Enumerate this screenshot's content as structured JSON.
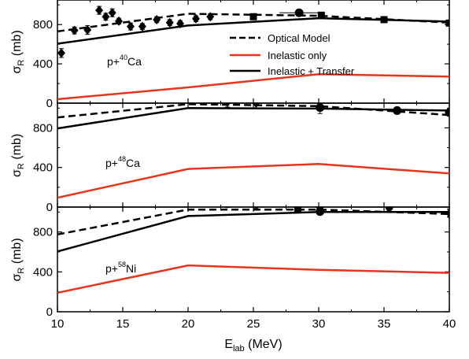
{
  "chart_data": {
    "type": "line",
    "x_axis": {
      "label": "E",
      "label_sub": "lab",
      "label_unit": " (MeV)",
      "ticks": [
        10,
        15,
        20,
        25,
        30,
        35,
        40
      ],
      "xlim": [
        10,
        40
      ]
    },
    "y_axis_label": {
      "main": "σ",
      "sub": "R",
      "unit": " (mb)"
    },
    "legend": {
      "placement": "top-right of top panel",
      "entries": [
        {
          "label": "Optical Model",
          "color": "#000000",
          "dash": "dashed"
        },
        {
          "label": "Inelastic only",
          "color": "#e8341c",
          "dash": "solid"
        },
        {
          "label": "Inelastic + Transfer",
          "color": "#000000",
          "dash": "solid"
        }
      ]
    },
    "panels": [
      {
        "id": "ca40",
        "label": {
          "prefix": "p+",
          "sup": "40",
          "el": "Ca"
        },
        "ylim": [
          0,
          1050
        ],
        "yticks": [
          "0",
          "400",
          "800"
        ],
        "series": [
          {
            "name": "Optical Model",
            "style": "dashed",
            "color": "#000000",
            "x": [
              10,
              20,
              30,
              40
            ],
            "y": [
              730,
              910,
              890,
              820
            ]
          },
          {
            "name": "Inelastic only",
            "style": "solid",
            "color": "#e8341c",
            "x": [
              10,
              20,
              30,
              40
            ],
            "y": [
              40,
              160,
              295,
              270
            ]
          },
          {
            "name": "Inelastic + Transfer",
            "style": "solid",
            "color": "#000000",
            "x": [
              10,
              20,
              30,
              40
            ],
            "y": [
              605,
              790,
              865,
              830
            ]
          }
        ],
        "points": [
          {
            "x": 10.3,
            "y": 510,
            "err": 45,
            "marker": "diamond"
          },
          {
            "x": 11.3,
            "y": 740,
            "err": 35,
            "marker": "diamond"
          },
          {
            "x": 12.3,
            "y": 745,
            "err": 45,
            "marker": "diamond"
          },
          {
            "x": 13.2,
            "y": 945,
            "err": 40,
            "marker": "diamond"
          },
          {
            "x": 13.7,
            "y": 880,
            "err": 35,
            "marker": "diamond"
          },
          {
            "x": 14.2,
            "y": 920,
            "err": 40,
            "marker": "diamond"
          },
          {
            "x": 14.7,
            "y": 835,
            "err": 30,
            "marker": "diamond"
          },
          {
            "x": 15.6,
            "y": 780,
            "err": 35,
            "marker": "diamond"
          },
          {
            "x": 16.5,
            "y": 780,
            "err": 30,
            "marker": "diamond"
          },
          {
            "x": 17.6,
            "y": 850,
            "err": 30,
            "marker": "diamond"
          },
          {
            "x": 18.6,
            "y": 820,
            "err": 30,
            "marker": "diamond"
          },
          {
            "x": 19.4,
            "y": 810,
            "err": 30,
            "marker": "diamond"
          },
          {
            "x": 20.6,
            "y": 860,
            "err": 30,
            "marker": "diamond"
          },
          {
            "x": 21.7,
            "y": 880,
            "err": 30,
            "marker": "diamond"
          },
          {
            "x": 25,
            "y": 880,
            "err": 25,
            "marker": "square"
          },
          {
            "x": 28.5,
            "y": 920,
            "err": 25,
            "xerr": 1.5,
            "marker": "circle"
          },
          {
            "x": 30.2,
            "y": 895,
            "err": 25,
            "marker": "square"
          },
          {
            "x": 35,
            "y": 850,
            "err": 20,
            "marker": "square"
          },
          {
            "x": 40,
            "y": 815,
            "err": 25,
            "marker": "square"
          }
        ]
      },
      {
        "id": "ca48",
        "label": {
          "prefix": "p+",
          "sup": "48",
          "el": "Ca"
        },
        "ylim": [
          0,
          1050
        ],
        "yticks": [
          "0",
          "400",
          "800"
        ],
        "series": [
          {
            "name": "Optical Model",
            "style": "dashed",
            "color": "#000000",
            "x": [
              10,
              20,
              30,
              40
            ],
            "y": [
              905,
              1040,
              1020,
              930
            ]
          },
          {
            "name": "Inelastic only",
            "style": "solid",
            "color": "#e8341c",
            "x": [
              10,
              20,
              30,
              40
            ],
            "y": [
              95,
              385,
              435,
              340
            ]
          },
          {
            "name": "Inelastic + Transfer",
            "style": "solid",
            "color": "#000000",
            "x": [
              10,
              20,
              30,
              40
            ],
            "y": [
              795,
              1000,
              995,
              975
            ]
          }
        ],
        "points": [
          {
            "x": 23,
            "y": 1060,
            "err": 50,
            "marker": "diamond"
          },
          {
            "x": 25.2,
            "y": 1050,
            "err": 50,
            "marker": "diamond"
          },
          {
            "x": 30.1,
            "y": 1005,
            "err": 60,
            "marker": "circle"
          },
          {
            "x": 36,
            "y": 975,
            "err": 30,
            "marker": "circle"
          },
          {
            "x": 40,
            "y": 955,
            "err": 30,
            "marker": "circle"
          }
        ]
      },
      {
        "id": "ni58",
        "label": {
          "prefix": "p+",
          "sup": "58",
          "el": "Ni"
        },
        "ylim": [
          0,
          1050
        ],
        "yticks": [
          "0",
          "400",
          "800"
        ],
        "series": [
          {
            "name": "Optical Model",
            "style": "dashed",
            "color": "#000000",
            "x": [
              10,
              20,
              30,
              40
            ],
            "y": [
              775,
              1025,
              1025,
              980
            ]
          },
          {
            "name": "Inelastic only",
            "style": "solid",
            "color": "#e8341c",
            "x": [
              10,
              20,
              30,
              40
            ],
            "y": [
              190,
              465,
              420,
              390
            ]
          },
          {
            "name": "Inelastic + Transfer",
            "style": "solid",
            "color": "#000000",
            "x": [
              10,
              20,
              30,
              40
            ],
            "y": [
              605,
              960,
              1000,
              1000
            ]
          }
        ],
        "points": [
          {
            "x": 23,
            "y": 1085,
            "err": 40,
            "marker": "diamond"
          },
          {
            "x": 25.2,
            "y": 1080,
            "err": 40,
            "marker": "diamond"
          },
          {
            "x": 28.4,
            "y": 1030,
            "err": 35,
            "marker": "square"
          },
          {
            "x": 30.1,
            "y": 1045,
            "err": 35,
            "marker": "diamond"
          },
          {
            "x": 30.1,
            "y": 1005,
            "err": 30,
            "marker": "circle"
          },
          {
            "x": 35.4,
            "y": 1035,
            "err": 40,
            "marker": "diamond"
          },
          {
            "x": 40,
            "y": 990,
            "err": 40,
            "marker": "diamond"
          },
          {
            "x": 40.2,
            "y": 965,
            "err": 30,
            "marker": "circle"
          }
        ]
      }
    ]
  }
}
